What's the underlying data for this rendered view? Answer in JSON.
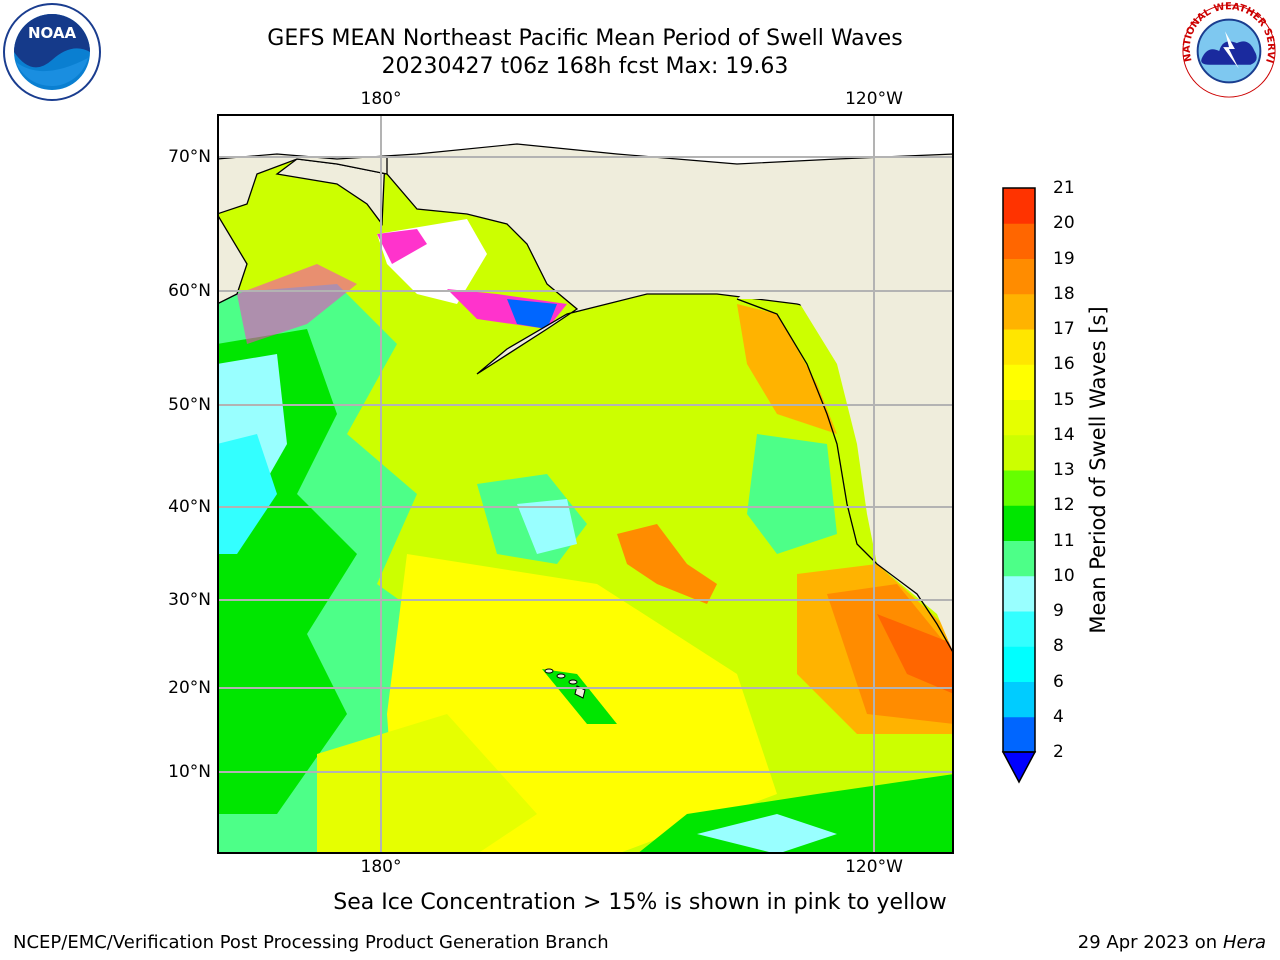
{
  "header": {
    "title_line1": "GEFS MEAN Northeast Pacific Mean Period of Swell Waves",
    "title_line2": "20230427 t06z 168h fcst   Max: 19.63"
  },
  "map": {
    "lon_labels": [
      "180°",
      "120°W"
    ],
    "lat_labels": [
      "70°N",
      "60°N",
      "50°N",
      "40°N",
      "30°N",
      "20°N",
      "10°N"
    ],
    "max_value": 19.63,
    "land_color": "#efeddc",
    "ice_color": "#ff33cc"
  },
  "colorbar": {
    "label": "Mean Period of Swell Waves [s]",
    "ticks": [
      "2",
      "4",
      "6",
      "8",
      "9",
      "10",
      "11",
      "12",
      "13",
      "14",
      "15",
      "16",
      "17",
      "18",
      "19",
      "20",
      "21"
    ],
    "colors": [
      "#0066ff",
      "#00ccff",
      "#00ffff",
      "#33ffff",
      "#99ffff",
      "#4dff88",
      "#00e600",
      "#66ff00",
      "#ccff00",
      "#e6ff00",
      "#ffff00",
      "#ffe600",
      "#ffb300",
      "#ff8c00",
      "#ff6600",
      "#ff3300",
      "#ff0000"
    ],
    "extend_color": "#0000ff"
  },
  "footer": {
    "note": "Sea Ice Concentration > 15% is shown in pink to yellow",
    "credit": "NCEP/EMC/Verification Post Processing Product Generation Branch",
    "date_prefix": "29 Apr 2023 on ",
    "date_machine": "Hera"
  },
  "logos": {
    "noaa_text": "NOAA",
    "nws_text": "NATIONAL WEATHER SERVICE"
  }
}
